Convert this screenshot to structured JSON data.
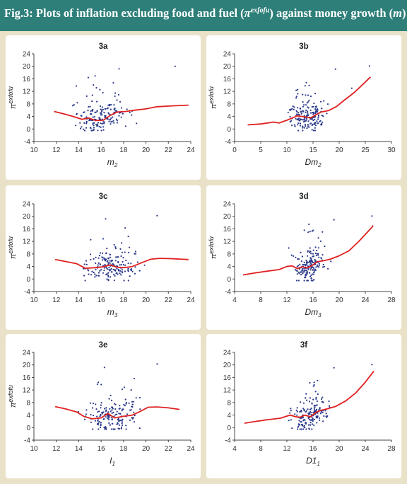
{
  "figure": {
    "title_prefix": "Fig.3: Plots of inflation excluding food and fuel (",
    "title_symbol": "π",
    "title_superscript": "exfofu",
    "title_middle": ") against money growth (",
    "title_var": "m",
    "title_suffix": ")"
  },
  "colors": {
    "header": "#2e7f7a",
    "background": "#eae2c8",
    "panel": "#ffffff",
    "trend": "#e02020",
    "points": "#2c3a8c"
  },
  "chart_data": [
    {
      "id": "3a",
      "type": "scatter",
      "title": "3a",
      "xlabel": "m",
      "xlabel_sub": "2",
      "ylabel": "π",
      "ylabel_sup": "exfofu",
      "xlim": [
        10,
        24
      ],
      "ylim": [
        -4,
        24
      ],
      "xticks": [
        10,
        12,
        14,
        16,
        18,
        20,
        22,
        24
      ],
      "yticks": [
        -4,
        0,
        4,
        8,
        12,
        16,
        20,
        24
      ],
      "points": {
        "seed": 11,
        "n": 170,
        "x_range": [
          12,
          23.8
        ],
        "x_center": 16.0,
        "x_spread": 2.3,
        "y_range": [
          -0.5,
          20
        ]
      },
      "trend": [
        [
          11.8,
          5.6
        ],
        [
          12.6,
          4.9
        ],
        [
          13.4,
          4.1
        ],
        [
          14.3,
          3.1
        ],
        [
          14.9,
          3.5
        ],
        [
          15.5,
          2.7
        ],
        [
          16.2,
          2.8
        ],
        [
          16.8,
          4.3
        ],
        [
          17.4,
          5.4
        ],
        [
          18.2,
          5.6
        ],
        [
          19.0,
          6.0
        ],
        [
          20.0,
          6.4
        ],
        [
          21.0,
          7.1
        ],
        [
          22.5,
          7.4
        ],
        [
          23.8,
          7.6
        ]
      ],
      "highlights": [
        [
          17.6,
          19.2
        ],
        [
          22.6,
          20.0
        ]
      ]
    },
    {
      "id": "3b",
      "type": "scatter",
      "title": "3b",
      "xlabel": "Dm",
      "xlabel_sub": "2",
      "ylabel": "π",
      "ylabel_sup": "exfofu",
      "xlim": [
        0,
        30
      ],
      "ylim": [
        -4,
        24
      ],
      "xticks": [
        0,
        5,
        10,
        15,
        20,
        25,
        30
      ],
      "yticks": [
        -4,
        0,
        4,
        8,
        12,
        16,
        20,
        24
      ],
      "points": {
        "seed": 22,
        "n": 170,
        "x_range": [
          2.5,
          26
        ],
        "x_center": 14.0,
        "x_spread": 3.2,
        "y_range": [
          -0.5,
          20
        ]
      },
      "trend": [
        [
          2.5,
          1.3
        ],
        [
          5.0,
          1.6
        ],
        [
          7.5,
          2.2
        ],
        [
          8.5,
          1.9
        ],
        [
          10.0,
          2.8
        ],
        [
          12.0,
          4.2
        ],
        [
          13.3,
          3.9
        ],
        [
          14.5,
          3.5
        ],
        [
          15.5,
          4.5
        ],
        [
          16.5,
          5.4
        ],
        [
          18.0,
          5.9
        ],
        [
          19.5,
          7.2
        ],
        [
          21.0,
          9.2
        ],
        [
          23.0,
          11.8
        ],
        [
          25.5,
          15.8
        ],
        [
          26.0,
          16.6
        ]
      ],
      "highlights": [
        [
          19.3,
          19.1
        ],
        [
          25.8,
          20.1
        ],
        [
          22.4,
          13.0
        ]
      ]
    },
    {
      "id": "3c",
      "type": "scatter",
      "title": "3c",
      "xlabel": "m",
      "xlabel_sub": "3",
      "ylabel": "π",
      "ylabel_sup": "exfofu",
      "xlim": [
        10,
        24
      ],
      "ylim": [
        -4,
        24
      ],
      "xticks": [
        10,
        12,
        14,
        16,
        18,
        20,
        22,
        24
      ],
      "yticks": [
        -4,
        0,
        4,
        8,
        12,
        16,
        20,
        24
      ],
      "points": {
        "seed": 33,
        "n": 170,
        "x_range": [
          12,
          23.8
        ],
        "x_center": 17.0,
        "x_spread": 2.3,
        "y_range": [
          -0.5,
          20
        ]
      },
      "trend": [
        [
          11.9,
          6.2
        ],
        [
          12.8,
          5.6
        ],
        [
          13.8,
          4.9
        ],
        [
          14.6,
          3.4
        ],
        [
          15.4,
          3.6
        ],
        [
          16.2,
          3.9
        ],
        [
          16.8,
          4.5
        ],
        [
          17.4,
          3.8
        ],
        [
          18.0,
          3.6
        ],
        [
          18.8,
          4.0
        ],
        [
          19.5,
          5.0
        ],
        [
          20.4,
          6.3
        ],
        [
          21.2,
          6.6
        ],
        [
          22.2,
          6.5
        ],
        [
          23.8,
          6.2
        ]
      ],
      "highlights": [
        [
          16.4,
          19.2
        ],
        [
          21.0,
          20.2
        ]
      ]
    },
    {
      "id": "3d",
      "type": "scatter",
      "title": "3d",
      "xlabel": "Dm",
      "xlabel_sub": "3",
      "ylabel": "π",
      "ylabel_sup": "exfofu",
      "xlim": [
        4,
        28
      ],
      "ylim": [
        -4,
        24
      ],
      "xticks": [
        4,
        8,
        12,
        16,
        20,
        24,
        28
      ],
      "yticks": [
        -4,
        0,
        4,
        8,
        12,
        16,
        20,
        24
      ],
      "points": {
        "seed": 44,
        "n": 170,
        "x_range": [
          5,
          25.5
        ],
        "x_center": 15.5,
        "x_spread": 2.5,
        "y_range": [
          -0.5,
          20
        ]
      },
      "trend": [
        [
          5.3,
          1.3
        ],
        [
          7.0,
          1.9
        ],
        [
          9.0,
          2.5
        ],
        [
          10.8,
          3.0
        ],
        [
          12.0,
          4.0
        ],
        [
          12.8,
          4.2
        ],
        [
          13.6,
          3.3
        ],
        [
          14.3,
          3.9
        ],
        [
          15.0,
          3.5
        ],
        [
          15.8,
          4.2
        ],
        [
          16.6,
          5.5
        ],
        [
          17.5,
          5.8
        ],
        [
          18.6,
          6.3
        ],
        [
          20.0,
          7.4
        ],
        [
          21.5,
          9.0
        ],
        [
          23.0,
          12.0
        ],
        [
          25.0,
          16.5
        ],
        [
          25.2,
          17.1
        ]
      ],
      "highlights": [
        [
          19.2,
          18.9
        ],
        [
          25.0,
          20.1
        ]
      ]
    },
    {
      "id": "3e",
      "type": "scatter",
      "title": "3e",
      "xlabel": "I",
      "xlabel_sub": "1",
      "ylabel": "π",
      "ylabel_sup": "exfofu",
      "xlim": [
        10,
        24
      ],
      "ylim": [
        -4,
        24
      ],
      "xticks": [
        10,
        12,
        14,
        16,
        18,
        20,
        22,
        24
      ],
      "yticks": [
        -4,
        0,
        4,
        8,
        12,
        16,
        20,
        24
      ],
      "points": {
        "seed": 55,
        "n": 170,
        "x_range": [
          12,
          23.5
        ],
        "x_center": 17.0,
        "x_spread": 2.2,
        "y_range": [
          -0.5,
          20
        ]
      },
      "trend": [
        [
          11.9,
          6.7
        ],
        [
          12.8,
          6.0
        ],
        [
          13.8,
          5.0
        ],
        [
          14.5,
          3.5
        ],
        [
          15.2,
          2.8
        ],
        [
          16.0,
          3.1
        ],
        [
          16.6,
          4.5
        ],
        [
          17.2,
          3.1
        ],
        [
          18.0,
          3.6
        ],
        [
          18.8,
          4.0
        ],
        [
          19.5,
          5.2
        ],
        [
          20.2,
          6.5
        ],
        [
          21.0,
          6.6
        ],
        [
          22.0,
          6.3
        ],
        [
          23.0,
          5.8
        ]
      ],
      "highlights": [
        [
          16.3,
          19.2
        ],
        [
          21.0,
          20.3
        ]
      ]
    },
    {
      "id": "3f",
      "type": "scatter",
      "title": "3f",
      "xlabel": "D1",
      "xlabel_sub": "1",
      "ylabel": "",
      "ylabel_sup": "",
      "xlim": [
        4,
        28
      ],
      "ylim": [
        -4,
        24
      ],
      "xticks": [
        4,
        8,
        12,
        16,
        20,
        24,
        28
      ],
      "yticks": [
        -4,
        0,
        4,
        8,
        12,
        16,
        20,
        24
      ],
      "points": {
        "seed": 66,
        "n": 170,
        "x_range": [
          5.5,
          25.5
        ],
        "x_center": 15.5,
        "x_spread": 2.5,
        "y_range": [
          -0.5,
          20
        ]
      },
      "trend": [
        [
          5.5,
          1.4
        ],
        [
          7.0,
          1.9
        ],
        [
          9.0,
          2.5
        ],
        [
          11.0,
          3.0
        ],
        [
          12.5,
          4.0
        ],
        [
          13.3,
          3.5
        ],
        [
          14.0,
          3.3
        ],
        [
          14.8,
          4.0
        ],
        [
          15.6,
          3.4
        ],
        [
          16.4,
          4.8
        ],
        [
          17.2,
          5.5
        ],
        [
          18.2,
          6.0
        ],
        [
          19.5,
          6.8
        ],
        [
          21.0,
          8.5
        ],
        [
          22.5,
          11.0
        ],
        [
          24.0,
          14.5
        ],
        [
          25.3,
          18.0
        ]
      ],
      "highlights": [
        [
          19.2,
          19.1
        ],
        [
          25.0,
          20.1
        ]
      ]
    }
  ]
}
